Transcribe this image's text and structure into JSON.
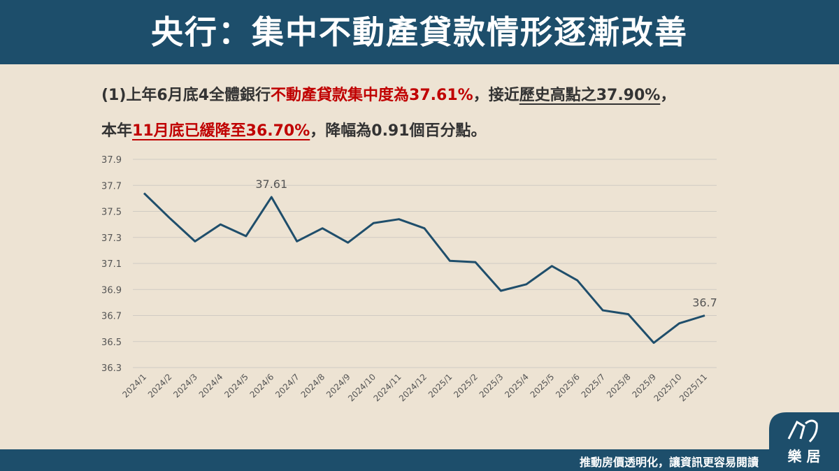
{
  "header": {
    "title": "央行：集中不動產貸款情形逐漸改善"
  },
  "subtitle": {
    "lines": [
      [
        {
          "text": "(1)上年6月底4全體銀行"
        },
        {
          "text": "不動產貸款集中度為37.61%",
          "color": "#c00000"
        },
        {
          "text": "，接近"
        },
        {
          "text": "歷史高點之37.90%",
          "underline": true
        },
        {
          "text": "，"
        }
      ],
      [
        {
          "text": "本年"
        },
        {
          "text": "11月底已緩降至36.70%",
          "color": "#c00000",
          "underline": true
        },
        {
          "text": "，降幅為0.91個百分點。"
        }
      ]
    ]
  },
  "chart_data": {
    "type": "line",
    "categories": [
      "2024/1",
      "2024/2",
      "2024/3",
      "2024/4",
      "2024/5",
      "2024/6",
      "2024/7",
      "2024/8",
      "2024/9",
      "2024/10",
      "2024/11",
      "2024/12",
      "2025/1",
      "2025/2",
      "2025/3",
      "2025/4",
      "2025/5",
      "2025/6",
      "2025/7",
      "2025/8",
      "2025/9",
      "2025/10",
      "2025/11"
    ],
    "series": [
      {
        "color": "#1f4e6b",
        "values": [
          37.64,
          37.45,
          37.27,
          37.4,
          37.31,
          37.61,
          37.27,
          37.37,
          37.26,
          37.41,
          37.44,
          37.37,
          37.12,
          37.11,
          36.89,
          36.94,
          37.08,
          36.97,
          36.74,
          36.71,
          36.49,
          36.64,
          36.7
        ],
        "value_labels": [
          null,
          null,
          null,
          null,
          null,
          "37.61",
          null,
          null,
          null,
          null,
          null,
          null,
          null,
          null,
          null,
          null,
          null,
          null,
          null,
          null,
          null,
          null,
          "36.7"
        ]
      }
    ],
    "ylim": [
      36.3,
      37.9
    ],
    "yticks": [
      36.3,
      36.5,
      36.7,
      36.9,
      37.1,
      37.3,
      37.5,
      37.7,
      37.9
    ],
    "grid": true
  },
  "footer": {
    "slogan": "推動房價透明化，讓資訊更容易閱讀",
    "logo": "樂 居"
  }
}
